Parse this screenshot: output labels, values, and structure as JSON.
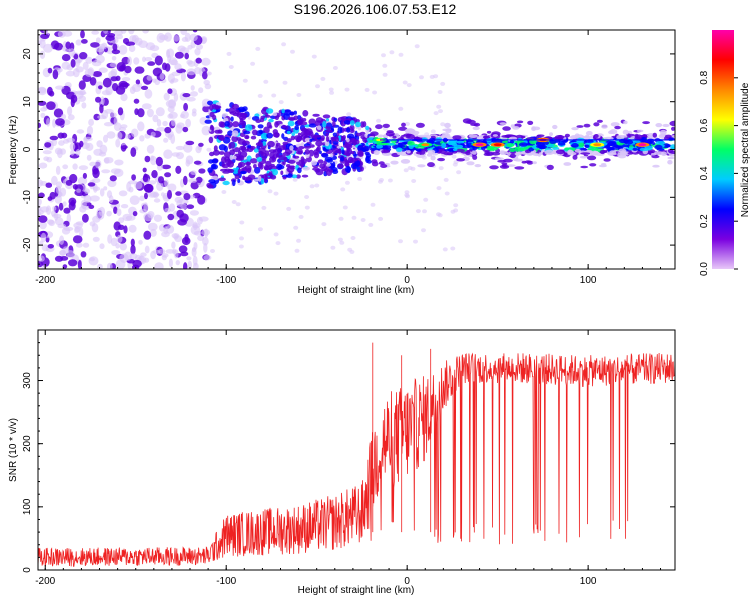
{
  "title": "S196.2026.106.07.53.E12",
  "colors": {
    "spectrum_dark": "#5a00d8",
    "spectrum_light": "#d8c4f8",
    "snr_line": "#ee2222",
    "axes": "#000000"
  },
  "chart_data": [
    {
      "type": "heatmap",
      "name": "spectrogram",
      "xlabel": "Height of straight line (km)",
      "ylabel": "Frequency (Hz)",
      "xlim": [
        -204,
        148
      ],
      "ylim": [
        -25,
        25
      ],
      "xticks": [
        -200,
        -100,
        0,
        100
      ],
      "yticks": [
        -20,
        -10,
        0,
        10,
        20
      ],
      "xtick_labels": [
        "-200",
        "-100",
        "0",
        "100"
      ],
      "ytick_labels": [
        "-20",
        "-10",
        "0",
        "10",
        "20"
      ],
      "colorbar": {
        "label": "Normalized spectral amplitude",
        "range": [
          0,
          1
        ],
        "ticks": [
          0.0,
          0.2,
          0.4,
          0.6,
          0.8
        ],
        "tick_labels": [
          "0.0",
          "0.2",
          "0.4",
          "0.6",
          "0.8"
        ],
        "colormap": [
          "#e8c8f8",
          "#7a00e0",
          "#0000ff",
          "#00ccff",
          "#00ff66",
          "#ffff00",
          "#ff8800",
          "#ff0000",
          "#ff00aa"
        ]
      },
      "regions": [
        {
          "x_range": [
            -204,
            -110
          ],
          "freq_range": [
            -25,
            25
          ],
          "amplitude": "low-noise"
        },
        {
          "x_range": [
            -110,
            -20
          ],
          "freq_range": [
            -10,
            10
          ],
          "amplitude": "moderate"
        },
        {
          "x_range": [
            -20,
            148
          ],
          "freq_center": 1,
          "freq_halfwidth": 2,
          "amplitude": "high-narrowband"
        }
      ],
      "hotspots": [
        {
          "x": 40,
          "freq": 1,
          "amplitude": 0.95
        },
        {
          "x": 50,
          "freq": 1,
          "amplitude": 0.9
        },
        {
          "x": 75,
          "freq": 2,
          "amplitude": 0.85
        },
        {
          "x": 130,
          "freq": 1,
          "amplitude": 0.95
        },
        {
          "x": 105,
          "freq": 1,
          "amplitude": 0.8
        },
        {
          "x": 10,
          "freq": 1,
          "amplitude": 0.7
        },
        {
          "x": -15,
          "freq": 2,
          "amplitude": 0.6
        }
      ]
    },
    {
      "type": "line",
      "name": "snr",
      "xlabel": "Height of straight line (km)",
      "ylabel": "SNR (10 * v/v)",
      "xlim": [
        -204,
        148
      ],
      "ylim": [
        0,
        380
      ],
      "xticks": [
        -200,
        -100,
        0,
        100
      ],
      "yticks": [
        0,
        100,
        200,
        300
      ],
      "xtick_labels": [
        "-200",
        "-100",
        "0",
        "100"
      ],
      "ytick_labels": [
        "0",
        "100",
        "200",
        "300"
      ],
      "series": [
        {
          "name": "SNR",
          "envelope": {
            "x": [
              -204,
              -110,
              -100,
              -60,
              -40,
              -25,
              -20,
              -15,
              -5,
              0,
              10,
              20,
              30,
              40,
              60,
              100,
              148
            ],
            "mean": [
              20,
              22,
              55,
              65,
              75,
              90,
              140,
              200,
              210,
              220,
              240,
              290,
              320,
              320,
              320,
              315,
              320
            ],
            "spread": [
              15,
              15,
              35,
              40,
              45,
              50,
              70,
              80,
              80,
              80,
              70,
              40,
              25,
              25,
              25,
              25,
              25
            ]
          },
          "spikes": [
            {
              "x": -19,
              "value": 360
            },
            {
              "x": -3,
              "value": 340
            },
            {
              "x": 13,
              "value": 350
            }
          ],
          "dropout_range": [
            -20,
            125
          ],
          "dropout_floor": 40
        }
      ]
    }
  ]
}
